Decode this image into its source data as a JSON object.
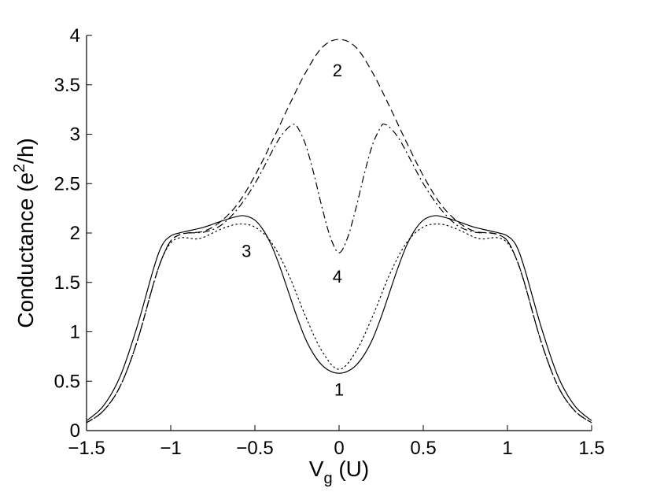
{
  "chart_data": {
    "type": "line",
    "title": "",
    "xlabel": "V",
    "xlabel_sub": "g",
    "xlabel_suffix": " (U)",
    "ylabel": "Conductance (e",
    "ylabel_sup": "2",
    "ylabel_suffix": "/h)",
    "xlim": [
      -1.5,
      1.5
    ],
    "ylim": [
      0,
      4
    ],
    "xticks": [
      -1.5,
      -1,
      -0.5,
      0,
      0.5,
      1,
      1.5
    ],
    "xtick_labels": [
      "−1.5",
      "−1",
      "−0.5",
      "0",
      "0.5",
      "1",
      "1.5"
    ],
    "yticks": [
      0,
      0.5,
      1,
      1.5,
      2,
      2.5,
      3,
      3.5,
      4
    ],
    "ytick_labels": [
      "0",
      "0.5",
      "1",
      "1.5",
      "2",
      "2.5",
      "3",
      "3.5",
      "4"
    ],
    "grid": false,
    "legend": "none",
    "series": [
      {
        "style": "solid",
        "x": [
          -1.5,
          -1.4,
          -1.3,
          -1.2,
          -1.1,
          -1.05,
          -1.0,
          -0.95,
          -0.9,
          -0.8,
          -0.7,
          -0.6,
          -0.55,
          -0.5,
          -0.45,
          -0.4,
          -0.35,
          -0.3,
          -0.25,
          -0.2,
          -0.15,
          -0.1,
          -0.05,
          0,
          0.05,
          0.1,
          0.15,
          0.2,
          0.25,
          0.3,
          0.35,
          0.4,
          0.45,
          0.5,
          0.55,
          0.6,
          0.7,
          0.8,
          0.9,
          0.95,
          1.0,
          1.05,
          1.1,
          1.2,
          1.3,
          1.4,
          1.5
        ],
        "y": [
          0.1,
          0.25,
          0.55,
          1.05,
          1.65,
          1.88,
          1.97,
          2.0,
          2.02,
          2.06,
          2.12,
          2.17,
          2.17,
          2.13,
          2.03,
          1.87,
          1.65,
          1.4,
          1.15,
          0.93,
          0.77,
          0.66,
          0.6,
          0.58,
          0.6,
          0.66,
          0.77,
          0.93,
          1.15,
          1.4,
          1.65,
          1.87,
          2.03,
          2.13,
          2.17,
          2.17,
          2.12,
          2.06,
          2.02,
          2.0,
          1.97,
          1.88,
          1.65,
          1.05,
          0.55,
          0.25,
          0.1
        ]
      },
      {
        "style": "dashed",
        "x": [
          -1.5,
          -1.4,
          -1.3,
          -1.2,
          -1.1,
          -1.05,
          -1.0,
          -0.95,
          -0.9,
          -0.8,
          -0.7,
          -0.6,
          -0.5,
          -0.4,
          -0.3,
          -0.2,
          -0.1,
          0,
          0.1,
          0.2,
          0.3,
          0.4,
          0.5,
          0.6,
          0.7,
          0.8,
          0.9,
          0.95,
          1.0,
          1.05,
          1.1,
          1.2,
          1.3,
          1.4,
          1.5
        ],
        "y": [
          0.08,
          0.2,
          0.45,
          0.9,
          1.5,
          1.75,
          1.92,
          1.98,
          2.0,
          2.02,
          2.12,
          2.3,
          2.58,
          2.92,
          3.28,
          3.62,
          3.88,
          3.96,
          3.88,
          3.62,
          3.28,
          2.92,
          2.58,
          2.3,
          2.12,
          2.02,
          2.0,
          1.98,
          1.92,
          1.75,
          1.5,
          0.9,
          0.45,
          0.2,
          0.08
        ]
      },
      {
        "style": "dotted",
        "x": [
          -1.5,
          -1.4,
          -1.3,
          -1.2,
          -1.1,
          -1.05,
          -1.0,
          -0.95,
          -0.9,
          -0.85,
          -0.8,
          -0.7,
          -0.6,
          -0.5,
          -0.4,
          -0.3,
          -0.2,
          -0.1,
          0,
          0.1,
          0.2,
          0.3,
          0.4,
          0.5,
          0.6,
          0.7,
          0.8,
          0.85,
          0.9,
          0.95,
          1.0,
          1.05,
          1.1,
          1.2,
          1.3,
          1.4,
          1.5
        ],
        "y": [
          0.08,
          0.2,
          0.45,
          0.9,
          1.5,
          1.75,
          1.9,
          1.95,
          1.95,
          1.94,
          1.96,
          2.04,
          2.09,
          2.06,
          1.9,
          1.58,
          1.16,
          0.8,
          0.62,
          0.8,
          1.16,
          1.58,
          1.9,
          2.06,
          2.09,
          2.04,
          1.96,
          1.94,
          1.95,
          1.95,
          1.9,
          1.75,
          1.5,
          0.9,
          0.45,
          0.2,
          0.08
        ]
      },
      {
        "style": "dashdot",
        "x": [
          -1.5,
          -1.4,
          -1.3,
          -1.2,
          -1.1,
          -1.05,
          -1.0,
          -0.95,
          -0.9,
          -0.8,
          -0.7,
          -0.6,
          -0.5,
          -0.4,
          -0.35,
          -0.3,
          -0.27,
          -0.25,
          -0.2,
          -0.15,
          -0.1,
          -0.05,
          0,
          0.05,
          0.1,
          0.15,
          0.2,
          0.25,
          0.27,
          0.3,
          0.35,
          0.4,
          0.5,
          0.6,
          0.7,
          0.8,
          0.9,
          0.95,
          1.0,
          1.05,
          1.1,
          1.2,
          1.3,
          1.4,
          1.5
        ],
        "y": [
          0.08,
          0.2,
          0.45,
          0.9,
          1.5,
          1.75,
          1.92,
          1.98,
          2.0,
          2.01,
          2.08,
          2.25,
          2.5,
          2.82,
          2.97,
          3.07,
          3.1,
          3.08,
          2.9,
          2.6,
          2.25,
          1.95,
          1.8,
          1.95,
          2.25,
          2.6,
          2.9,
          3.08,
          3.1,
          3.07,
          2.97,
          2.82,
          2.5,
          2.25,
          2.08,
          2.01,
          2.0,
          1.98,
          1.92,
          1.75,
          1.5,
          0.9,
          0.45,
          0.2,
          0.08
        ]
      }
    ],
    "annotations": [
      {
        "text": "1",
        "x": 0.0,
        "y": 0.42
      },
      {
        "text": "2",
        "x": -0.01,
        "y": 3.65
      },
      {
        "text": "3",
        "x": -0.55,
        "y": 1.82
      },
      {
        "text": "4",
        "x": -0.01,
        "y": 1.56
      }
    ]
  }
}
